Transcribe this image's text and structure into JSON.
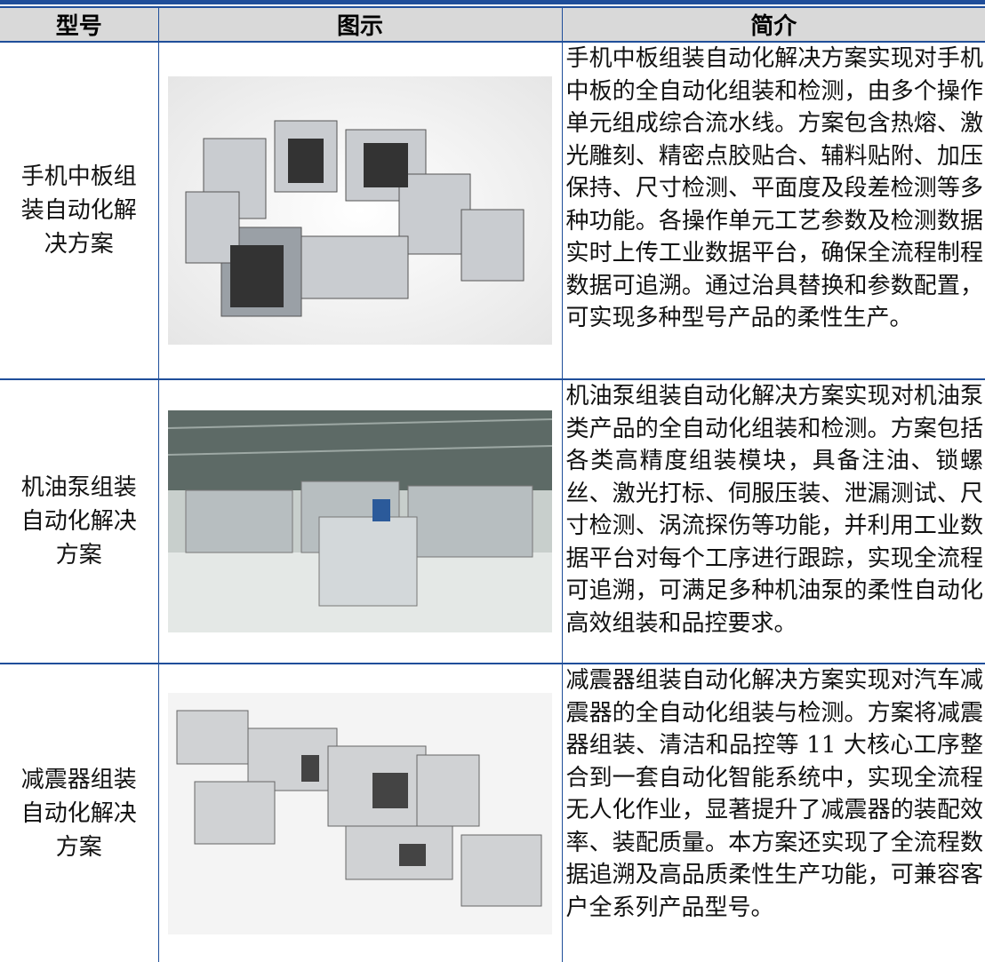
{
  "table": {
    "header": [
      "型号",
      "图示",
      "简介"
    ],
    "rows": [
      {
        "model": "手机中板组装自动化解决方案",
        "description": "手机中板组装自动化解决方案实现对手机中板的全自动化组装和检测，由多个操作单元组成综合流水线。方案包含热熔、激光雕刻、精密点胶贴合、辅料贴附、加压保持、尺寸检测、平面度及段差检测等多种功能。各操作单元工艺参数及检测数据实时上传工业数据平台，确保全流程制程数据可追溯。通过治具替换和参数配置，可实现多种型号产品的柔性生产。"
      },
      {
        "model": "机油泵组装自动化解决方案",
        "description": "机油泵组装自动化解决方案实现对机油泵类产品的全自动化组装和检测。方案包括各类高精度组装模块，具备注油、锁螺丝、激光打标、伺服压装、泄漏测试、尺寸检测、涡流探伤等功能，并利用工业数据平台对每个工序进行跟踪，实现全流程可追溯，可满足多种机油泵的柔性自动化高效组装和品控要求。"
      },
      {
        "model": "减震器组装自动化解决方案",
        "description": "减震器组装自动化解决方案实现对汽车减震器的全自动化组装与检测。方案将减震器组装、清洁和品控等 11 大核心工序整合到一套自动化智能系统中，实现全流程无人化作业，显著提升了减震器的装配效率、装配质量。本方案还实现了全流程数据追溯及高品质柔性生产功能，可兼容客户全系列产品型号。"
      }
    ]
  }
}
